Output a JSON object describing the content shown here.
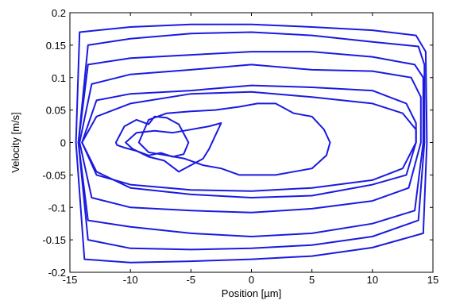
{
  "chart_data": {
    "type": "line",
    "title": "",
    "xlabel": "Position [µm]",
    "ylabel": "Velocity [m/s]",
    "xlim": [
      -15,
      15
    ],
    "ylim": [
      -0.2,
      0.2
    ],
    "xticks": [
      -15,
      -10,
      -5,
      0,
      5,
      10,
      15
    ],
    "yticks": [
      -0.2,
      -0.15,
      -0.1,
      -0.05,
      0,
      0.05,
      0.1,
      0.15,
      0.2
    ],
    "xtick_labels": [
      "-15",
      "-10",
      "-5",
      "0",
      "5",
      "10",
      "15"
    ],
    "ytick_labels": [
      "-0.2",
      "-0.15",
      "-0.1",
      "-0.05",
      "0",
      "0.05",
      "0.1",
      "0.15",
      "0.2"
    ],
    "grid": false,
    "line_color": "#1a1ae0",
    "series": [
      {
        "x": [
          -14.5,
          -14.2,
          -10,
          -5,
          0,
          5,
          10,
          13.6,
          14.4,
          14.5,
          14.2,
          10,
          5,
          0,
          -5,
          -10,
          -13.8,
          -14.5
        ],
        "y": [
          0,
          0.17,
          0.178,
          0.182,
          0.182,
          0.178,
          0.173,
          0.165,
          0.14,
          0,
          -0.14,
          -0.162,
          -0.175,
          -0.18,
          -0.183,
          -0.185,
          -0.18,
          0
        ]
      },
      {
        "x": [
          -14.3,
          -13.5,
          -10,
          -5,
          0,
          5,
          10,
          13.8,
          14.3,
          14.3,
          13.8,
          10,
          5,
          0,
          -5,
          -10,
          -13.5,
          -14.3
        ],
        "y": [
          0,
          0.15,
          0.16,
          0.168,
          0.17,
          0.165,
          0.155,
          0.148,
          0.12,
          0,
          -0.12,
          -0.145,
          -0.158,
          -0.163,
          -0.165,
          -0.163,
          -0.15,
          0
        ]
      },
      {
        "x": [
          -14.3,
          -13.5,
          -10,
          -5,
          0,
          5,
          10,
          13.5,
          14.2,
          14.2,
          13.5,
          10,
          5,
          0,
          -5,
          -10,
          -13.5,
          -14.3
        ],
        "y": [
          0,
          0.12,
          0.13,
          0.135,
          0.14,
          0.14,
          0.132,
          0.12,
          0.1,
          0,
          -0.105,
          -0.125,
          -0.14,
          -0.145,
          -0.14,
          -0.13,
          -0.12,
          0
        ]
      },
      {
        "x": [
          -14.2,
          -13.2,
          -10,
          -5,
          0,
          5,
          10,
          13.2,
          14.0,
          14.0,
          13.0,
          10,
          5,
          0,
          -5,
          -10,
          -13.2,
          -14.2
        ],
        "y": [
          0,
          0.09,
          0.105,
          0.112,
          0.12,
          0.112,
          0.11,
          0.1,
          0.07,
          0,
          -0.07,
          -0.09,
          -0.102,
          -0.108,
          -0.105,
          -0.1,
          -0.085,
          0
        ]
      },
      {
        "x": [
          -14.0,
          -12.8,
          -10,
          -5,
          0,
          5,
          10,
          12.8,
          13.6,
          13.6,
          12.5,
          10,
          5,
          0,
          -5,
          -10,
          -12.8,
          -14.0
        ],
        "y": [
          0,
          0.065,
          0.075,
          0.08,
          0.088,
          0.085,
          0.08,
          0.06,
          0.03,
          0,
          -0.04,
          -0.058,
          -0.07,
          -0.075,
          -0.073,
          -0.065,
          -0.05,
          0
        ]
      },
      {
        "x": [
          -11.2,
          -10.5,
          -9.5,
          -8.5,
          -8.0,
          -7.0,
          -6.0,
          -5.2,
          -5.6,
          -6.5,
          -7.5,
          -8.5,
          -9.5,
          -10.5,
          -11.1,
          -11.2
        ],
        "y": [
          0.0,
          0.025,
          0.035,
          0.028,
          0.04,
          0.038,
          0.028,
          0.0,
          -0.018,
          -0.022,
          -0.016,
          -0.02,
          -0.013,
          -0.008,
          -0.004,
          0.0
        ]
      },
      {
        "x": [
          -9.3,
          -8.5,
          -7.0,
          -5.0,
          -3.0,
          -1.0,
          0.5,
          2.0,
          3.5,
          5.0,
          6.0,
          6.5,
          6.2,
          5.0,
          3.5,
          2.0,
          0.5,
          -1.0,
          -2.5,
          -4.0,
          -5.5,
          -7.0,
          -8.5,
          -9.3
        ],
        "y": [
          0.0,
          0.035,
          0.045,
          0.048,
          0.05,
          0.055,
          0.06,
          0.06,
          0.045,
          0.04,
          0.02,
          0.0,
          -0.02,
          -0.04,
          -0.045,
          -0.05,
          -0.05,
          -0.05,
          -0.04,
          -0.035,
          -0.025,
          -0.02,
          -0.015,
          0.0
        ]
      },
      {
        "x": [
          -10.4,
          -9.5,
          -8.0,
          -6.5,
          -5.0,
          -3.5,
          -2.5,
          -3.0,
          -3.5,
          -4.0,
          -5.0,
          -6.0,
          -7.2,
          -8.5,
          -9.8,
          -10.4
        ],
        "y": [
          0.0,
          0.015,
          0.018,
          0.015,
          0.02,
          0.025,
          0.03,
          0.01,
          -0.01,
          -0.025,
          -0.035,
          -0.045,
          -0.028,
          -0.022,
          -0.01,
          0.0
        ]
      },
      {
        "x": [
          -14.0,
          -12.8,
          -10,
          -5,
          0,
          5,
          10,
          12.5,
          13.6,
          13.6,
          12.8,
          10,
          5,
          0,
          -5,
          -10,
          -12.8,
          -14.0
        ],
        "y": [
          0,
          0.04,
          0.06,
          0.075,
          0.078,
          0.07,
          0.06,
          0.045,
          0.02,
          0,
          -0.05,
          -0.065,
          -0.082,
          -0.085,
          -0.08,
          -0.07,
          -0.045,
          0
        ]
      }
    ]
  }
}
